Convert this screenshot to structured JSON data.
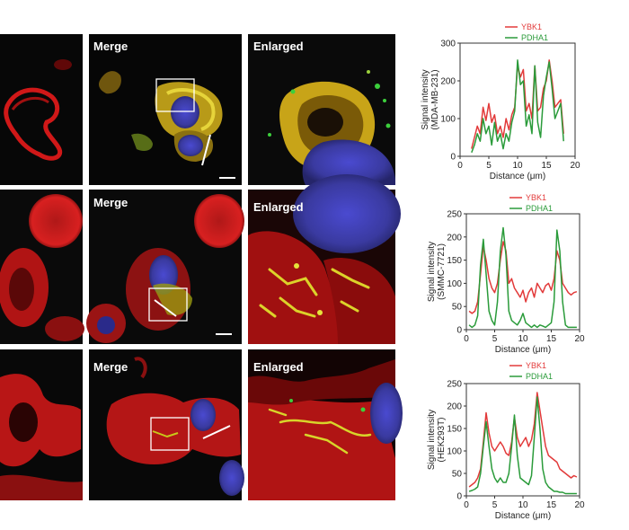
{
  "figure": {
    "panel_labels": {
      "merge": "Merge",
      "enlarged": "Enlarged"
    },
    "colors": {
      "ybk1": "#e23a3a",
      "pdha1": "#2a9b3a",
      "red_channel": "#c81414",
      "yellow_channel": "#d4c21a",
      "blue_channel": "#3a3aa8",
      "green_channel": "#3ccf3c"
    }
  },
  "chart_data": [
    {
      "type": "line",
      "ylabel": "Signal intensity\n(MDA-MB-231)",
      "xlabel": "Distance (μm)",
      "xlim": [
        0,
        20
      ],
      "ylim": [
        0,
        300
      ],
      "xticks": [
        0,
        5,
        10,
        15,
        20
      ],
      "yticks": [
        0,
        100,
        200,
        300
      ],
      "grid": false,
      "legend": "top",
      "series": [
        {
          "name": "YBK1",
          "color": "#e23a3a",
          "x": [
            2,
            2.5,
            3,
            3.5,
            4,
            4.5,
            5,
            5.5,
            6,
            6.5,
            7,
            7.5,
            8,
            8.5,
            9,
            9.5,
            10,
            10.5,
            11,
            11.5,
            12,
            12.5,
            13,
            13.5,
            14,
            14.5,
            15,
            15.5,
            16,
            16.5,
            17,
            17.5,
            18
          ],
          "y": [
            20,
            50,
            80,
            60,
            130,
            95,
            140,
            90,
            110,
            60,
            80,
            50,
            100,
            70,
            110,
            130,
            240,
            210,
            230,
            120,
            140,
            100,
            240,
            120,
            130,
            180,
            200,
            255,
            200,
            130,
            140,
            150,
            60
          ]
        },
        {
          "name": "PDHA1",
          "color": "#2a9b3a",
          "x": [
            2,
            2.5,
            3,
            3.5,
            4,
            4.5,
            5,
            5.5,
            6,
            6.5,
            7,
            7.5,
            8,
            8.5,
            9,
            9.5,
            10,
            10.5,
            11,
            11.5,
            12,
            12.5,
            13,
            13.5,
            14,
            14.5,
            15,
            15.5,
            16,
            16.5,
            17,
            17.5,
            18
          ],
          "y": [
            10,
            30,
            60,
            40,
            100,
            60,
            80,
            30,
            90,
            40,
            60,
            20,
            60,
            40,
            90,
            120,
            255,
            190,
            200,
            80,
            110,
            60,
            240,
            90,
            50,
            160,
            210,
            250,
            180,
            100,
            120,
            140,
            40
          ]
        }
      ]
    },
    {
      "type": "line",
      "ylabel": "Signal intensity\n(SMMC-7721)",
      "xlabel": "Distance (μm)",
      "xlim": [
        0,
        20
      ],
      "ylim": [
        0,
        250
      ],
      "xticks": [
        0,
        5,
        10,
        15,
        20
      ],
      "yticks": [
        0,
        50,
        100,
        150,
        200,
        250
      ],
      "grid": false,
      "legend": "top",
      "series": [
        {
          "name": "YBK1",
          "color": "#e23a3a",
          "x": [
            0.5,
            1,
            1.5,
            2,
            2.5,
            3,
            3.5,
            4,
            4.5,
            5,
            5.5,
            6,
            6.5,
            7,
            7.5,
            8,
            8.5,
            9,
            9.5,
            10,
            10.5,
            11,
            11.5,
            12,
            12.5,
            13,
            13.5,
            14,
            14.5,
            15,
            15.5,
            16,
            16.5,
            17,
            17.5,
            18,
            18.5,
            19,
            19.5
          ],
          "y": [
            40,
            35,
            40,
            60,
            120,
            180,
            150,
            110,
            90,
            80,
            100,
            150,
            190,
            170,
            100,
            110,
            90,
            80,
            70,
            85,
            60,
            80,
            90,
            70,
            100,
            90,
            80,
            95,
            100,
            85,
            110,
            170,
            150,
            100,
            90,
            80,
            75,
            80,
            82
          ]
        },
        {
          "name": "PDHA1",
          "color": "#2a9b3a",
          "x": [
            0.5,
            1,
            1.5,
            2,
            2.5,
            3,
            3.5,
            4,
            4.5,
            5,
            5.5,
            6,
            6.5,
            7,
            7.5,
            8,
            8.5,
            9,
            9.5,
            10,
            10.5,
            11,
            11.5,
            12,
            12.5,
            13,
            13.5,
            14,
            14.5,
            15,
            15.5,
            16,
            16.5,
            17,
            17.5,
            18,
            18.5,
            19,
            19.5
          ],
          "y": [
            10,
            5,
            10,
            30,
            140,
            195,
            120,
            40,
            20,
            10,
            60,
            170,
            220,
            160,
            40,
            20,
            15,
            10,
            20,
            35,
            15,
            10,
            5,
            10,
            5,
            10,
            8,
            5,
            10,
            15,
            60,
            215,
            170,
            60,
            10,
            5,
            5,
            5,
            5
          ]
        }
      ]
    },
    {
      "type": "line",
      "ylabel": "Signal intensity\n(HEK293T)",
      "xlabel": "Distance (μm)",
      "xlim": [
        0,
        20
      ],
      "ylim": [
        0,
        250
      ],
      "xticks": [
        0,
        5,
        10,
        15,
        20
      ],
      "yticks": [
        0,
        50,
        100,
        150,
        200,
        250
      ],
      "grid": false,
      "legend": "top",
      "series": [
        {
          "name": "YBK1",
          "color": "#e23a3a",
          "x": [
            0.5,
            1,
            1.5,
            2,
            2.5,
            3,
            3.5,
            4,
            4.5,
            5,
            5.5,
            6,
            6.5,
            7,
            7.5,
            8,
            8.5,
            9,
            9.5,
            10,
            10.5,
            11,
            11.5,
            12,
            12.5,
            13,
            13.5,
            14,
            14.5,
            15,
            15.5,
            16,
            16.5,
            17,
            17.5,
            18,
            18.5,
            19,
            19.5
          ],
          "y": [
            20,
            25,
            30,
            40,
            60,
            120,
            185,
            140,
            110,
            100,
            110,
            120,
            110,
            95,
            90,
            120,
            175,
            130,
            110,
            120,
            130,
            110,
            125,
            160,
            230,
            190,
            150,
            110,
            90,
            85,
            80,
            75,
            60,
            55,
            50,
            45,
            40,
            45,
            42
          ]
        },
        {
          "name": "PDHA1",
          "color": "#2a9b3a",
          "x": [
            0.5,
            1,
            1.5,
            2,
            2.5,
            3,
            3.5,
            4,
            4.5,
            5,
            5.5,
            6,
            6.5,
            7,
            7.5,
            8,
            8.5,
            9,
            9.5,
            10,
            10.5,
            11,
            11.5,
            12,
            12.5,
            13,
            13.5,
            14,
            14.5,
            15,
            15.5,
            16,
            16.5,
            17,
            17.5,
            18,
            18.5,
            19,
            19.5
          ],
          "y": [
            10,
            12,
            15,
            20,
            50,
            110,
            165,
            110,
            60,
            40,
            30,
            40,
            30,
            30,
            50,
            110,
            180,
            90,
            40,
            35,
            30,
            25,
            45,
            130,
            220,
            150,
            60,
            30,
            20,
            15,
            10,
            10,
            8,
            8,
            5,
            5,
            5,
            5,
            5
          ]
        }
      ]
    }
  ]
}
